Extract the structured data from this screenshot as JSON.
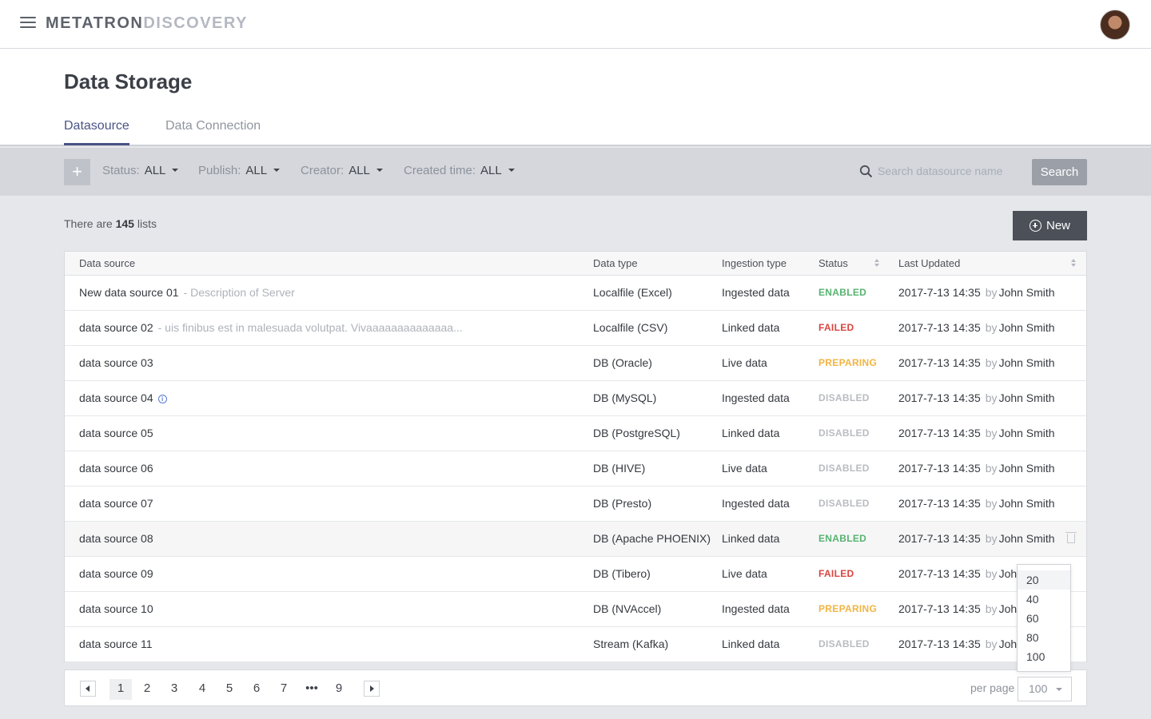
{
  "topbar": {
    "logo_part1": "METATRON",
    "logo_part2": "DISCOVERY"
  },
  "page_title": "Data Storage",
  "tabs": [
    {
      "label": "Datasource",
      "active": true
    },
    {
      "label": "Data Connection",
      "active": false
    }
  ],
  "filters": {
    "status": {
      "label": "Status:",
      "value": "ALL"
    },
    "publish": {
      "label": "Publish:",
      "value": "ALL"
    },
    "creator": {
      "label": "Creator:",
      "value": "ALL"
    },
    "created_time": {
      "label": "Created time:",
      "value": "ALL"
    },
    "search_placeholder": "Search datasource name",
    "search_button": "Search"
  },
  "summary": {
    "prefix": "There are",
    "count": "145",
    "suffix": "lists"
  },
  "new_button": "New",
  "table": {
    "headers": [
      "Data source",
      "Data type",
      "Ingestion type",
      "Status",
      "Last Updated"
    ],
    "rows": [
      {
        "name": "New data source 01",
        "desc": "-  Description of Server",
        "type": "Localfile (Excel)",
        "ingestion": "Ingested data",
        "status": "ENABLED",
        "date": "2017-7-13 14:35",
        "by": "by",
        "user": "John Smith"
      },
      {
        "name": "data source 02",
        "desc": "-  uis finibus est in malesuada volutpat. Vivaaaaaaaaaaaaaa...",
        "type": "Localfile (CSV)",
        "ingestion": "Linked data",
        "status": "FAILED",
        "date": "2017-7-13 14:35",
        "by": "by",
        "user": "John Smith"
      },
      {
        "name": "data source 03",
        "desc": "",
        "type": "DB (Oracle)",
        "ingestion": "Live data",
        "status": "PREPARING",
        "date": "2017-7-13 14:35",
        "by": "by",
        "user": "John Smith"
      },
      {
        "name": "data source 04",
        "desc": "",
        "type": "DB (MySQL)",
        "ingestion": "Ingested data",
        "status": "DISABLED",
        "date": "2017-7-13 14:35",
        "by": "by",
        "user": "John Smith"
      },
      {
        "name": "data source 05",
        "desc": "",
        "type": "DB (PostgreSQL)",
        "ingestion": "Linked data",
        "status": "DISABLED",
        "date": "2017-7-13 14:35",
        "by": "by",
        "user": "John Smith"
      },
      {
        "name": "data source 06",
        "desc": "",
        "type": "DB (HIVE)",
        "ingestion": "Live data",
        "status": "DISABLED",
        "date": "2017-7-13 14:35",
        "by": "by",
        "user": "John Smith"
      },
      {
        "name": "data source 07",
        "desc": "",
        "type": "DB (Presto)",
        "ingestion": "Ingested data",
        "status": "DISABLED",
        "date": "2017-7-13 14:35",
        "by": "by",
        "user": "John Smith"
      },
      {
        "name": "data source 08",
        "desc": "",
        "type": "DB (Apache PHOENIX)",
        "ingestion": "Linked data",
        "status": "ENABLED",
        "date": "2017-7-13 14:35",
        "by": "by",
        "user": "John Smith"
      },
      {
        "name": "data source 09",
        "desc": "",
        "type": "DB (Tibero)",
        "ingestion": "Live data",
        "status": "FAILED",
        "date": "2017-7-13 14:35",
        "by": "by",
        "user": "Joh"
      },
      {
        "name": "data source 10",
        "desc": "",
        "type": "DB (NVAccel)",
        "ingestion": "Ingested data",
        "status": "PREPARING",
        "date": "2017-7-13 14:35",
        "by": "by",
        "user": "Joh"
      },
      {
        "name": "data source 11",
        "desc": "",
        "type": "Stream (Kafka)",
        "ingestion": "Linked data",
        "status": "DISABLED",
        "date": "2017-7-13 14:35",
        "by": "by",
        "user": "Joh"
      }
    ]
  },
  "pagination": {
    "pages": [
      "1",
      "2",
      "3",
      "4",
      "5",
      "6",
      "7",
      "•••",
      "9"
    ],
    "current": "1",
    "per_page_label": "per page",
    "per_page_value": "100",
    "per_page_options": [
      "20",
      "40",
      "60",
      "80",
      "100"
    ]
  },
  "colors": {
    "accent": "#4a5386",
    "enabled": "#58b370",
    "failed": "#d9453f",
    "preparing": "#f1b442",
    "disabled": "#b9bcc2"
  }
}
